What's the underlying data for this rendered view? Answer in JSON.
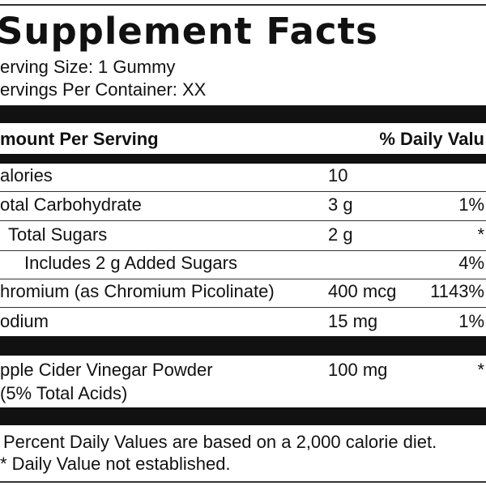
{
  "header": {
    "title": "Supplement Facts",
    "serving_size": "erving Size: 1 Gummy",
    "servings_per_container": "ervings Per Container: XX"
  },
  "table": {
    "header": [
      "mount Per Serving",
      "% Daily Valu"
    ],
    "rows": [
      [
        "alories",
        "10",
        ""
      ],
      [
        "otal Carbohydrate",
        "3 g",
        "1%"
      ],
      [
        "Total Sugars",
        "2 g",
        "*"
      ],
      [
        "Includes 2 g Added Sugars",
        "",
        "4%"
      ],
      [
        "hromium (as Chromium Picolinate)",
        "400 mcg",
        "1143%"
      ],
      [
        "odium",
        "15 mg",
        "1%"
      ]
    ],
    "extra": {
      "name": "pple Cider Vinegar Powder",
      "note": "(5% Total Acids)",
      "amount": "100 mg",
      "dv": "*"
    }
  },
  "footnotes": [
    "Percent Daily Values are based on a 2,000 calorie diet.",
    "* Daily Value not established."
  ]
}
